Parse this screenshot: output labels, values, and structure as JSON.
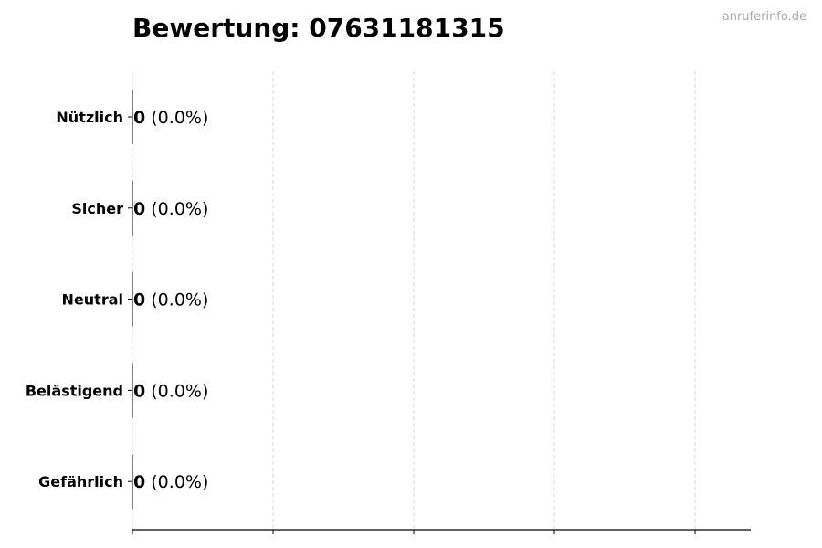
{
  "chart_data": {
    "type": "bar",
    "orientation": "horizontal",
    "title": "Bewertung: 07631181315",
    "categories": [
      "Nützlich",
      "Sicher",
      "Neutral",
      "Belästigend",
      "Gefährlich"
    ],
    "values": [
      0,
      0,
      0,
      0,
      0
    ],
    "percent_labels": [
      "(0.0%)",
      "(0.0%)",
      "(0.0%)",
      "(0.0%)",
      "(0.0%)"
    ],
    "xlabel": "",
    "ylabel": "",
    "xlim": [
      0,
      4.4
    ],
    "xticks": [
      0,
      1,
      2,
      3,
      4
    ],
    "xtick_labels_shown": false,
    "grid": "x-dashed",
    "bar_edge_color": "#000000",
    "grid_color": "#cccccc"
  },
  "watermark": "anruferinfo.de"
}
